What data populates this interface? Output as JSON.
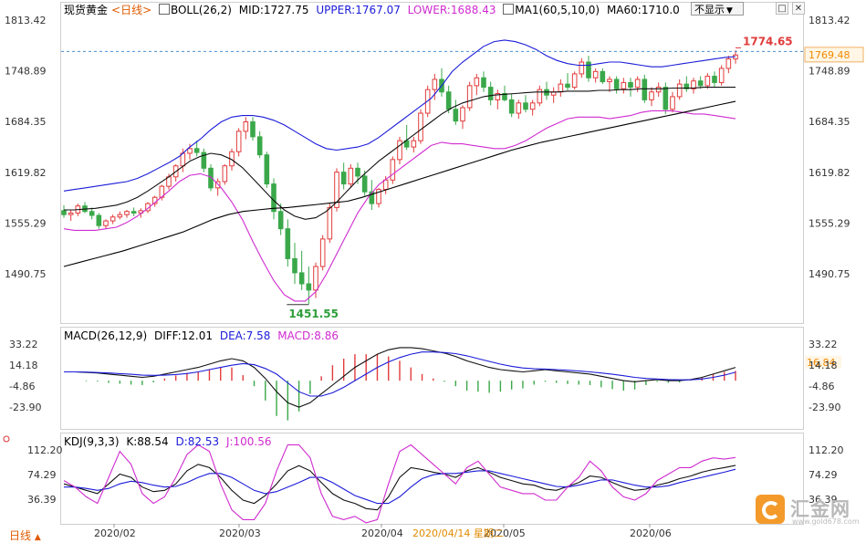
{
  "header": {
    "symbol": "现货黄金",
    "period": "<日线>",
    "boll_label": "BOLL(26,2)",
    "mid": "MID:1727.75",
    "upper": "UPPER:1767.07",
    "lower": "LOWER:1688.43",
    "ma_label": "MA1(60,5,10,0)",
    "ma60": "MA60:1710.0",
    "dropdown_label": "不显示",
    "dropdown_arrow": "▼",
    "btn_min": "□",
    "btn_close": "✕"
  },
  "macd_header": {
    "label": "MACD(26,12,9)",
    "diff": "DIFF:12.01",
    "dea": "DEA:7.58",
    "macd": "MACD:8.86"
  },
  "kdj_header": {
    "label": "KDJ(9,3,3)",
    "k": "K:88.54",
    "d": "D:82.53",
    "j": "J:100.56"
  },
  "footer": {
    "period_tag": "日线",
    "period_arrow": "▲",
    "cursor_date": "2020/04/14 星期二",
    "logo_text": "汇金网",
    "logo_sub": "www.gold678.com"
  },
  "colors": {
    "up": "#e23b3b",
    "down": "#3aa84a",
    "boll": "#1b1bd9",
    "mid": "#111111",
    "ma": "#000000",
    "lower": "#d02bd0",
    "macd_dea": "#d02bd0",
    "kdj_j": "#d02bd0",
    "price_tag_bg": "#fff6e6",
    "price_tag_text": "#f08a00",
    "high_label": "#e23b3b",
    "low_label": "#2e9e3a",
    "axis_text": "#333333"
  },
  "chart_data": [
    {
      "type": "candlestick",
      "title": "现货黄金 日线",
      "x_labels": [
        "2020/02",
        "2020/03",
        "2020/04",
        "2020/05",
        "2020/06"
      ],
      "y_ticks": [
        1490.75,
        1555.29,
        1619.82,
        1684.35,
        1748.89,
        1813.42
      ],
      "ylim": [
        1451.55,
        1813.42
      ],
      "last_price": 1769.48,
      "high_label": 1774.65,
      "low_label": 1451.55,
      "candles": [
        [
          1571,
          1578,
          1562,
          1566
        ],
        [
          1566,
          1572,
          1558,
          1568
        ],
        [
          1568,
          1580,
          1564,
          1577
        ],
        [
          1577,
          1582,
          1568,
          1570
        ],
        [
          1570,
          1575,
          1560,
          1565
        ],
        [
          1565,
          1568,
          1548,
          1552
        ],
        [
          1552,
          1560,
          1548,
          1558
        ],
        [
          1558,
          1566,
          1554,
          1563
        ],
        [
          1563,
          1570,
          1560,
          1566
        ],
        [
          1566,
          1572,
          1562,
          1570
        ],
        [
          1570,
          1575,
          1564,
          1568
        ],
        [
          1568,
          1574,
          1562,
          1571
        ],
        [
          1571,
          1582,
          1568,
          1580
        ],
        [
          1580,
          1590,
          1576,
          1588
        ],
        [
          1588,
          1604,
          1584,
          1602
        ],
        [
          1602,
          1618,
          1598,
          1614
        ],
        [
          1614,
          1630,
          1608,
          1628
        ],
        [
          1628,
          1650,
          1620,
          1644
        ],
        [
          1644,
          1656,
          1636,
          1650
        ],
        [
          1650,
          1660,
          1640,
          1645
        ],
        [
          1645,
          1650,
          1620,
          1625
        ],
        [
          1625,
          1630,
          1596,
          1600
        ],
        [
          1600,
          1612,
          1590,
          1608
        ],
        [
          1608,
          1630,
          1604,
          1628
        ],
        [
          1628,
          1650,
          1622,
          1646
        ],
        [
          1646,
          1676,
          1640,
          1672
        ],
        [
          1672,
          1690,
          1662,
          1684
        ],
        [
          1684,
          1690,
          1660,
          1665
        ],
        [
          1665,
          1672,
          1638,
          1642
        ],
        [
          1642,
          1646,
          1600,
          1605
        ],
        [
          1605,
          1612,
          1560,
          1570
        ],
        [
          1570,
          1580,
          1540,
          1548
        ],
        [
          1548,
          1560,
          1500,
          1510
        ],
        [
          1510,
          1530,
          1478,
          1492
        ],
        [
          1492,
          1520,
          1470,
          1478
        ],
        [
          1478,
          1500,
          1452,
          1470
        ],
        [
          1470,
          1505,
          1460,
          1500
        ],
        [
          1500,
          1540,
          1495,
          1535
        ],
        [
          1535,
          1580,
          1530,
          1575
        ],
        [
          1575,
          1625,
          1570,
          1620
        ],
        [
          1620,
          1632,
          1598,
          1605
        ],
        [
          1605,
          1630,
          1600,
          1625
        ],
        [
          1625,
          1632,
          1605,
          1615
        ],
        [
          1615,
          1622,
          1590,
          1595
        ],
        [
          1595,
          1610,
          1572,
          1580
        ],
        [
          1580,
          1600,
          1575,
          1598
        ],
        [
          1598,
          1615,
          1592,
          1610
        ],
        [
          1610,
          1640,
          1605,
          1636
        ],
        [
          1636,
          1665,
          1630,
          1660
        ],
        [
          1660,
          1680,
          1648,
          1652
        ],
        [
          1652,
          1665,
          1645,
          1660
        ],
        [
          1660,
          1700,
          1656,
          1695
        ],
        [
          1695,
          1730,
          1690,
          1725
        ],
        [
          1725,
          1745,
          1712,
          1738
        ],
        [
          1738,
          1752,
          1716,
          1722
        ],
        [
          1722,
          1730,
          1695,
          1700
        ],
        [
          1700,
          1712,
          1680,
          1685
        ],
        [
          1685,
          1705,
          1675,
          1702
        ],
        [
          1702,
          1735,
          1698,
          1730
        ],
        [
          1730,
          1745,
          1718,
          1740
        ],
        [
          1740,
          1748,
          1722,
          1728
        ],
        [
          1728,
          1735,
          1705,
          1712
        ],
        [
          1712,
          1725,
          1700,
          1720
        ],
        [
          1720,
          1730,
          1710,
          1712
        ],
        [
          1712,
          1720,
          1690,
          1695
        ],
        [
          1695,
          1712,
          1688,
          1708
        ],
        [
          1708,
          1718,
          1696,
          1700
        ],
        [
          1700,
          1712,
          1692,
          1708
        ],
        [
          1708,
          1730,
          1704,
          1725
        ],
        [
          1725,
          1735,
          1712,
          1718
        ],
        [
          1718,
          1728,
          1708,
          1722
        ],
        [
          1722,
          1738,
          1716,
          1732
        ],
        [
          1732,
          1746,
          1724,
          1728
        ],
        [
          1728,
          1748,
          1725,
          1745
        ],
        [
          1745,
          1765,
          1740,
          1760
        ],
        [
          1760,
          1768,
          1735,
          1740
        ],
        [
          1740,
          1752,
          1734,
          1748
        ],
        [
          1748,
          1752,
          1732,
          1735
        ],
        [
          1735,
          1742,
          1722,
          1738
        ],
        [
          1738,
          1742,
          1720,
          1726
        ],
        [
          1726,
          1740,
          1720,
          1734
        ],
        [
          1734,
          1740,
          1716,
          1728
        ],
        [
          1728,
          1742,
          1722,
          1738
        ],
        [
          1738,
          1744,
          1708,
          1712
        ],
        [
          1712,
          1728,
          1704,
          1722
        ],
        [
          1722,
          1734,
          1716,
          1728
        ],
        [
          1728,
          1734,
          1694,
          1700
        ],
        [
          1700,
          1722,
          1696,
          1716
        ],
        [
          1716,
          1738,
          1712,
          1732
        ],
        [
          1732,
          1742,
          1722,
          1726
        ],
        [
          1726,
          1740,
          1720,
          1736
        ],
        [
          1736,
          1742,
          1726,
          1730
        ],
        [
          1730,
          1746,
          1726,
          1742
        ],
        [
          1742,
          1748,
          1728,
          1734
        ],
        [
          1734,
          1756,
          1730,
          1752
        ],
        [
          1752,
          1768,
          1746,
          1764
        ],
        [
          1764,
          1775,
          1758,
          1769
        ]
      ],
      "bollinger": {
        "upper": [
          1596,
          1598,
          1600,
          1602,
          1604,
          1606,
          1608,
          1612,
          1618,
          1625,
          1632,
          1640,
          1652,
          1662,
          1674,
          1684,
          1690,
          1692,
          1692,
          1690,
          1686,
          1680,
          1672,
          1664,
          1656,
          1650,
          1648,
          1650,
          1652,
          1656,
          1664,
          1674,
          1684,
          1694,
          1704,
          1714,
          1730,
          1748,
          1760,
          1770,
          1780,
          1786,
          1788,
          1786,
          1782,
          1776,
          1768,
          1762,
          1758,
          1756,
          1756,
          1758,
          1760,
          1760,
          1758,
          1756,
          1754,
          1754,
          1756,
          1758,
          1760,
          1762,
          1764,
          1766,
          1767
        ],
        "mid": [
          1572,
          1572,
          1573,
          1574,
          1576,
          1578,
          1582,
          1588,
          1596,
          1605,
          1614,
          1624,
          1634,
          1640,
          1644,
          1642,
          1636,
          1626,
          1612,
          1598,
          1584,
          1572,
          1564,
          1560,
          1562,
          1570,
          1582,
          1596,
          1610,
          1622,
          1634,
          1644,
          1654,
          1664,
          1674,
          1684,
          1694,
          1702,
          1708,
          1712,
          1716,
          1718,
          1719,
          1720,
          1721,
          1722,
          1722,
          1722,
          1723,
          1723,
          1723,
          1724,
          1724,
          1725,
          1725,
          1726,
          1726,
          1726,
          1727,
          1727,
          1727,
          1728,
          1728,
          1728,
          1728
        ],
        "lower": [
          1548,
          1546,
          1546,
          1546,
          1548,
          1550,
          1556,
          1564,
          1574,
          1585,
          1596,
          1608,
          1616,
          1618,
          1614,
          1600,
          1582,
          1560,
          1532,
          1506,
          1482,
          1464,
          1456,
          1456,
          1468,
          1490,
          1516,
          1542,
          1568,
          1588,
          1604,
          1614,
          1624,
          1634,
          1644,
          1654,
          1658,
          1656,
          1656,
          1654,
          1652,
          1650,
          1650,
          1654,
          1660,
          1668,
          1676,
          1682,
          1688,
          1690,
          1690,
          1690,
          1688,
          1690,
          1692,
          1696,
          1698,
          1698,
          1698,
          1696,
          1694,
          1694,
          1692,
          1690,
          1688
        ]
      },
      "ma60": [
        1500,
        1505,
        1510,
        1515,
        1520,
        1526,
        1532,
        1538,
        1544,
        1552,
        1560,
        1566,
        1570,
        1572,
        1574,
        1575,
        1577,
        1579,
        1581,
        1583,
        1588,
        1594,
        1600,
        1606,
        1612,
        1618,
        1624,
        1630,
        1636,
        1642,
        1648,
        1653,
        1658,
        1662,
        1666,
        1670,
        1674,
        1678,
        1682,
        1686,
        1690,
        1694,
        1698,
        1702,
        1706,
        1710
      ]
    },
    {
      "type": "macd",
      "title": "MACD(26,12,9)",
      "y_ticks": [
        -23.9,
        -4.86,
        14.18,
        33.22
      ],
      "ylim": [
        -32,
        40
      ],
      "diff": [
        8,
        8,
        7.5,
        7,
        6,
        5,
        4,
        3,
        4,
        6,
        8,
        10,
        12,
        15,
        18,
        20,
        18,
        12,
        2,
        -10,
        -20,
        -24,
        -20,
        -12,
        -4,
        4,
        12,
        18,
        24,
        28,
        30,
        30,
        29,
        27,
        25,
        22,
        18,
        15,
        12,
        10,
        9,
        8,
        9,
        10,
        9,
        8,
        7,
        6,
        4,
        2,
        0,
        -1,
        0,
        1,
        0,
        0,
        1,
        3,
        6,
        9,
        12
      ],
      "dea": [
        8,
        8,
        7.8,
        7.4,
        7,
        6.4,
        5.8,
        5,
        4.8,
        5,
        5.6,
        6.5,
        8,
        10,
        12,
        14,
        15.5,
        14.5,
        11,
        6,
        -2,
        -10,
        -14,
        -14,
        -11,
        -6,
        0,
        6,
        12,
        17,
        21,
        24,
        26,
        26,
        25.5,
        24.5,
        22.5,
        20,
        17.5,
        15,
        13,
        11.5,
        10.8,
        10.5,
        10,
        9.5,
        8.8,
        8,
        7,
        5.8,
        4.5,
        3,
        2,
        1.5,
        1,
        0.8,
        0.8,
        1.5,
        3,
        5,
        7.6
      ],
      "hist": [
        0,
        0,
        -0.6,
        -0.8,
        -2,
        -2.8,
        -3.6,
        -4,
        -1.6,
        2,
        4.8,
        7,
        8,
        10,
        12,
        12,
        5,
        -5,
        -18,
        -32,
        -36,
        -28,
        -12,
        4,
        14,
        20,
        24,
        24,
        24,
        22,
        18,
        12,
        6,
        2,
        -1,
        -5,
        -9,
        -10,
        -11,
        -10,
        -8,
        -7,
        -3.6,
        -1,
        -2,
        -3,
        -3.6,
        -4,
        -6,
        -7.6,
        -9,
        -8,
        -4,
        -1,
        -2,
        -1.6,
        0.4,
        3,
        6,
        8,
        8.86
      ]
    },
    {
      "type": "kdj",
      "title": "KDJ(9,3,3)",
      "y_ticks": [
        36.39,
        74.29,
        112.2
      ],
      "ylim": [
        0,
        125
      ],
      "k": [
        60,
        55,
        50,
        45,
        60,
        75,
        70,
        55,
        48,
        50,
        60,
        80,
        90,
        85,
        70,
        50,
        35,
        30,
        42,
        60,
        80,
        88,
        80,
        62,
        45,
        35,
        30,
        22,
        20,
        40,
        70,
        85,
        82,
        78,
        75,
        70,
        80,
        85,
        78,
        70,
        65,
        60,
        58,
        52,
        50,
        56,
        62,
        72,
        70,
        62,
        55,
        50,
        52,
        58,
        62,
        68,
        72,
        78,
        82,
        85,
        88.5
      ],
      "d": [
        55,
        55,
        53,
        50,
        53,
        60,
        64,
        62,
        58,
        55,
        56,
        62,
        70,
        76,
        76,
        70,
        60,
        50,
        45,
        48,
        55,
        62,
        70,
        70,
        62,
        52,
        42,
        36,
        30,
        30,
        40,
        55,
        68,
        74,
        76,
        76,
        78,
        80,
        80,
        76,
        72,
        68,
        64,
        60,
        56,
        55,
        58,
        62,
        66,
        66,
        62,
        58,
        55,
        55,
        57,
        62,
        66,
        70,
        74,
        78,
        82.5
      ],
      "j": [
        65,
        55,
        40,
        30,
        70,
        110,
        90,
        45,
        30,
        40,
        70,
        105,
        120,
        110,
        60,
        20,
        5,
        5,
        30,
        80,
        120,
        120,
        100,
        45,
        10,
        5,
        10,
        0,
        5,
        60,
        110,
        120,
        105,
        90,
        75,
        60,
        85,
        95,
        75,
        55,
        50,
        45,
        45,
        35,
        35,
        55,
        70,
        95,
        80,
        55,
        40,
        35,
        45,
        65,
        75,
        85,
        85,
        95,
        100,
        98,
        100.56
      ]
    }
  ]
}
